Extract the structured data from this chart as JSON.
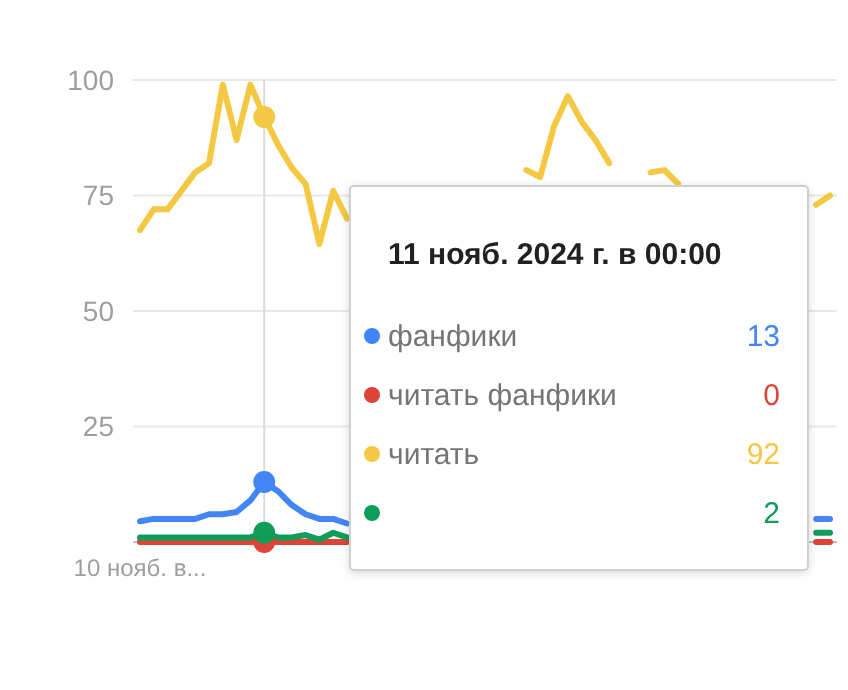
{
  "chart_data": {
    "type": "line",
    "categories": [
      "10 нояб. в...",
      null,
      null,
      null,
      null,
      null,
      null,
      null,
      null,
      null,
      null,
      null,
      null,
      null,
      null,
      null,
      null,
      null,
      null,
      null,
      null,
      null,
      null,
      null,
      null,
      null,
      null,
      null,
      null,
      null,
      null,
      null,
      null,
      null,
      null,
      null,
      null,
      null,
      null,
      null,
      null,
      null,
      null,
      null,
      null,
      null,
      null,
      null,
      null,
      null,
      null
    ],
    "ylim": [
      0,
      100
    ],
    "yticks": [
      25,
      50,
      75,
      100
    ],
    "grid": "y",
    "legend": "right",
    "marker": "none",
    "line_style": "solid",
    "annotations": [
      "11 нояб. 2024 г. в 00:00",
      "13",
      "0",
      "92",
      "2"
    ],
    "series": [
      {
        "name": "фанфики",
        "color": "#4285f4",
        "values": [
          4.5,
          5,
          5,
          5,
          5,
          6,
          6,
          6.5,
          9,
          13,
          11,
          8,
          6,
          5,
          5,
          4,
          null,
          null,
          null,
          null,
          null,
          null,
          null,
          null,
          null,
          null,
          null,
          null,
          null,
          null,
          null,
          null,
          null,
          null,
          null,
          null,
          null,
          null,
          null,
          null,
          null,
          null,
          null,
          null,
          null,
          null,
          null,
          null,
          null,
          5,
          5
        ]
      },
      {
        "name": "читать фанфики",
        "color": "#db4437",
        "values": [
          0,
          0,
          0,
          0,
          0,
          0,
          0,
          0,
          0,
          0,
          0,
          0,
          0,
          0,
          0,
          0,
          null,
          null,
          null,
          null,
          null,
          null,
          null,
          null,
          null,
          null,
          null,
          null,
          null,
          null,
          null,
          null,
          null,
          null,
          null,
          null,
          null,
          null,
          null,
          null,
          null,
          null,
          null,
          null,
          null,
          null,
          null,
          null,
          null,
          0,
          0
        ]
      },
      {
        "name": "читать",
        "color": "#f4c842",
        "values": [
          67.5,
          72,
          72,
          76,
          80,
          82,
          99,
          87,
          99,
          92,
          86,
          81,
          77.5,
          64.5,
          76,
          70,
          null,
          null,
          null,
          null,
          null,
          null,
          null,
          null,
          null,
          null,
          null,
          null,
          80.5,
          79,
          90,
          96.5,
          91,
          87,
          82,
          null,
          null,
          80,
          80.5,
          77.5,
          null,
          null,
          null,
          null,
          null,
          null,
          null,
          null,
          null,
          73,
          75
        ]
      },
      {
        "color": "#0f9d58",
        "values": [
          1,
          1,
          1,
          1,
          1,
          1,
          1,
          1,
          1,
          2,
          1,
          1,
          1.5,
          0.5,
          2,
          1,
          null,
          null,
          null,
          null,
          null,
          null,
          null,
          null,
          null,
          null,
          null,
          null,
          null,
          null,
          null,
          null,
          null,
          null,
          null,
          null,
          null,
          null,
          null,
          null,
          null,
          null,
          null,
          null,
          null,
          null,
          null,
          null,
          null,
          2,
          2
        ]
      }
    ]
  }
}
